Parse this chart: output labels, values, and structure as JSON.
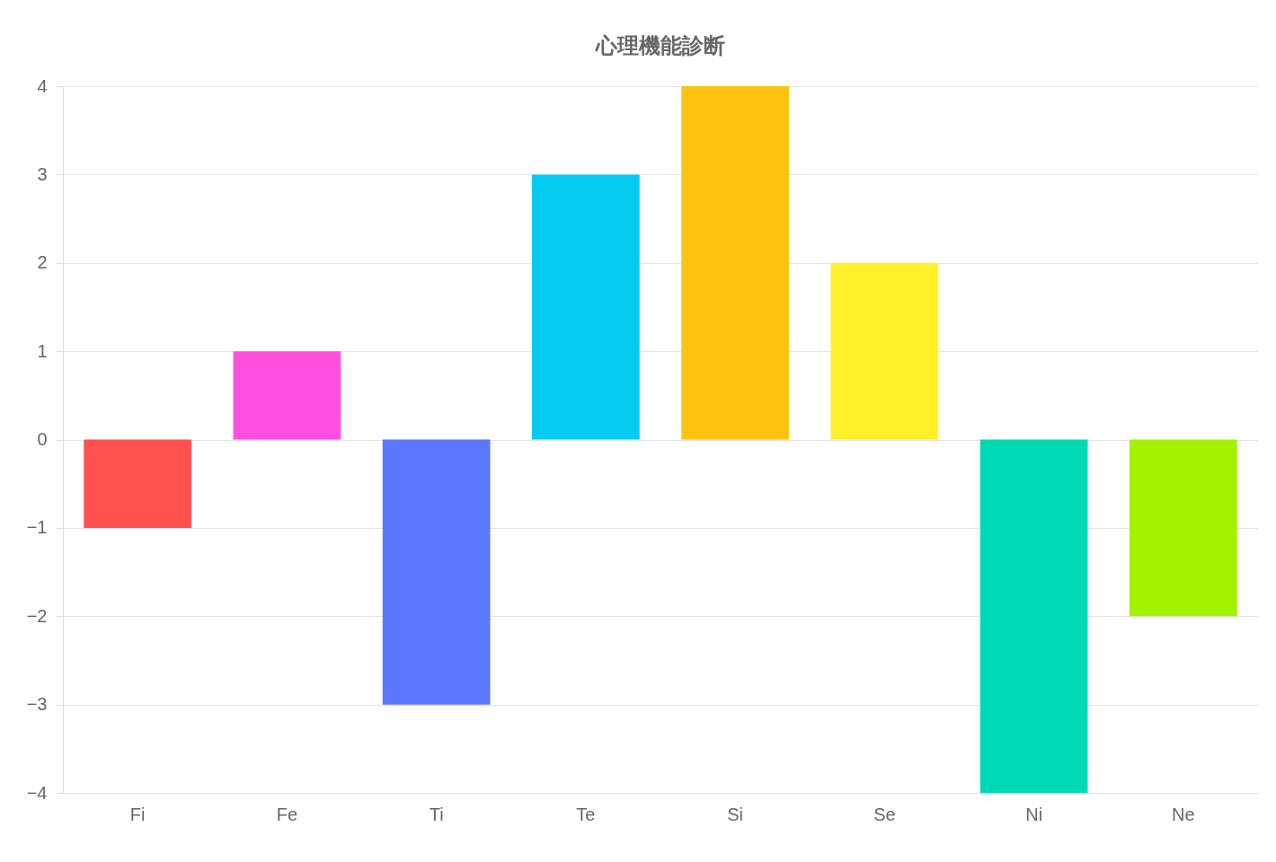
{
  "chart_data": {
    "type": "bar",
    "title": "心理機能診断",
    "categories": [
      "Fi",
      "Fe",
      "Ti",
      "Te",
      "Si",
      "Se",
      "Ni",
      "Ne"
    ],
    "values": [
      -1,
      1,
      -3,
      3,
      4,
      2,
      -4,
      -2
    ],
    "colors": [
      "#ff5050",
      "#ff50e0",
      "#5b75ff",
      "#05cbf2",
      "#ffc312",
      "#fff02a",
      "#00d9b5",
      "#a3f200"
    ],
    "ylim": [
      -4,
      4
    ],
    "yticks": [
      -4,
      -3,
      -2,
      -1,
      0,
      1,
      2,
      3,
      4
    ],
    "grid": "y",
    "legend": false
  }
}
